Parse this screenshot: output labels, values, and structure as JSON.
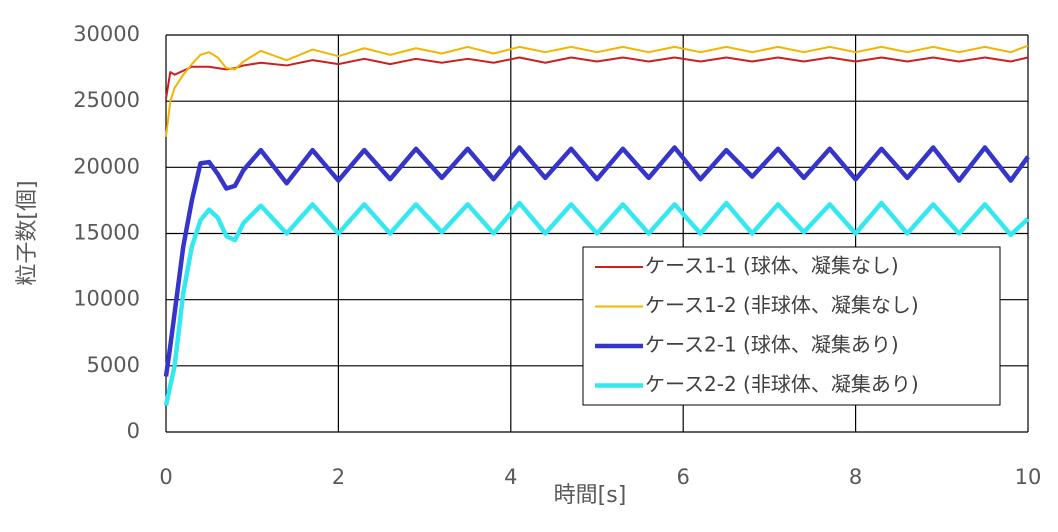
{
  "chart_data": {
    "type": "line",
    "x_label": "時間[s]",
    "y_label": "粒子数[個]",
    "x": [
      0,
      0.05,
      0.1,
      0.2,
      0.3,
      0.4,
      0.5,
      0.6,
      0.7,
      0.8,
      0.9,
      1.1,
      1.4,
      1.7,
      2.0,
      2.3,
      2.6,
      2.9,
      3.2,
      3.5,
      3.8,
      4.1,
      4.4,
      4.7,
      5.0,
      5.3,
      5.6,
      5.9,
      6.2,
      6.5,
      6.8,
      7.1,
      7.4,
      7.7,
      8.0,
      8.3,
      8.6,
      8.9,
      9.2,
      9.5,
      9.8,
      10
    ],
    "series": [
      {
        "name": "ケース1-1 (球体、凝集なし)",
        "color": "#cc1f1f",
        "width": 2,
        "values": [
          25200,
          27200,
          27000,
          27300,
          27600,
          27600,
          27600,
          27500,
          27400,
          27500,
          27700,
          27900,
          27700,
          28100,
          27800,
          28200,
          27800,
          28200,
          27900,
          28200,
          27900,
          28300,
          27900,
          28300,
          28000,
          28300,
          28000,
          28300,
          28000,
          28300,
          28000,
          28300,
          28000,
          28300,
          28000,
          28300,
          28000,
          28300,
          28000,
          28300,
          28000,
          28300
        ]
      },
      {
        "name": "ケース1-2 (非球体、凝集なし)",
        "color": "#f2b500",
        "width": 2,
        "values": [
          22300,
          25000,
          26000,
          27000,
          27800,
          28500,
          28700,
          28300,
          27500,
          27400,
          28000,
          28800,
          28100,
          28900,
          28400,
          29000,
          28500,
          29000,
          28600,
          29100,
          28600,
          29100,
          28700,
          29100,
          28700,
          29100,
          28700,
          29100,
          28700,
          29100,
          28700,
          29100,
          28700,
          29100,
          28700,
          29100,
          28700,
          29100,
          28700,
          29100,
          28700,
          29200
        ]
      },
      {
        "name": "ケース2-1 (球体、凝集あり)",
        "color": "#3535cc",
        "width": 4.5,
        "values": [
          4200,
          6500,
          9000,
          14000,
          17500,
          20300,
          20400,
          19500,
          18400,
          18600,
          19800,
          21300,
          18800,
          21300,
          19000,
          21300,
          19100,
          21400,
          19200,
          21400,
          19100,
          21500,
          19200,
          21400,
          19100,
          21400,
          19200,
          21500,
          19100,
          21300,
          19300,
          21400,
          19200,
          21400,
          19100,
          21400,
          19200,
          21500,
          19000,
          21500,
          19000,
          20800
        ]
      },
      {
        "name": "ケース2-2 (非球体、凝集あり)",
        "color": "#33e8f0",
        "width": 4.5,
        "values": [
          2000,
          3500,
          5000,
          10500,
          14000,
          16000,
          16800,
          16200,
          14800,
          14500,
          15800,
          17100,
          15000,
          17200,
          15000,
          17200,
          15000,
          17200,
          15100,
          17200,
          15000,
          17300,
          15000,
          17200,
          15000,
          17200,
          15000,
          17200,
          15000,
          17300,
          15000,
          17200,
          15100,
          17200,
          15000,
          17300,
          15000,
          17200,
          15000,
          17200,
          14900,
          16100
        ]
      }
    ],
    "xlim": [
      0,
      10
    ],
    "xticks": [
      0,
      2,
      4,
      6,
      8,
      10
    ],
    "ylim": [
      0,
      30000
    ],
    "yticks": [
      0,
      5000,
      10000,
      15000,
      20000,
      25000,
      30000
    ],
    "grid": true
  }
}
